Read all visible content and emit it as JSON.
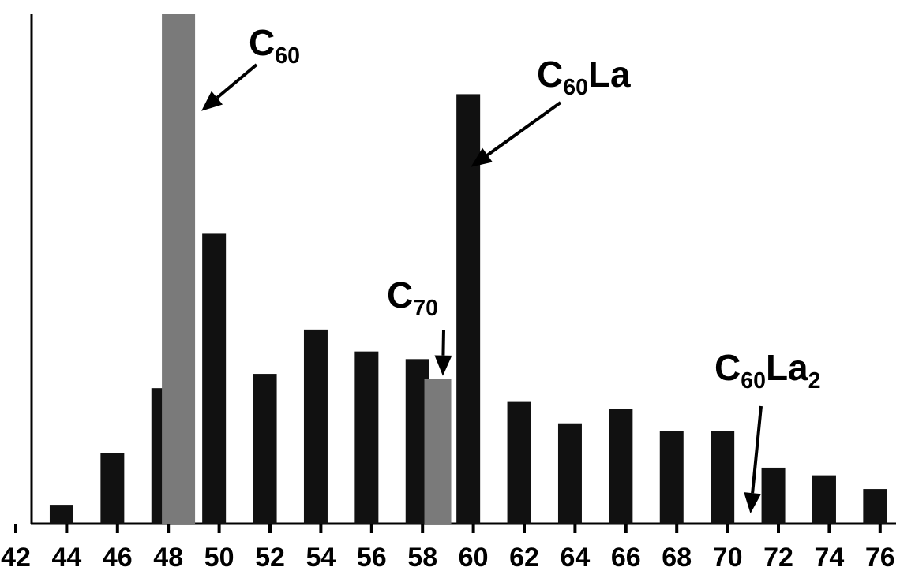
{
  "chart_data": {
    "type": "bar",
    "title": "",
    "xlabel": "",
    "ylabel": "",
    "x_ticks": [
      "42",
      "44",
      "46",
      "48",
      "50",
      "52",
      "54",
      "56",
      "58",
      "60",
      "62",
      "64",
      "66",
      "68",
      "70",
      "72",
      "74",
      "76"
    ],
    "ylim": [
      0,
      100
    ],
    "grid": false,
    "bars": [
      {
        "x": 43.8,
        "value": 3.7,
        "color": "#111111"
      },
      {
        "x": 45.8,
        "value": 13.8,
        "color": "#111111"
      },
      {
        "x": 47.8,
        "value": 26.6,
        "color": "#111111"
      },
      {
        "x": 48.4,
        "value": 100,
        "color": "#7a7a7a"
      },
      {
        "x": 49.8,
        "value": 56.9,
        "color": "#111111"
      },
      {
        "x": 51.8,
        "value": 29.4,
        "color": "#111111"
      },
      {
        "x": 53.8,
        "value": 38.1,
        "color": "#111111"
      },
      {
        "x": 55.8,
        "value": 33.8,
        "color": "#111111"
      },
      {
        "x": 57.8,
        "value": 32.3,
        "color": "#111111"
      },
      {
        "x": 58.6,
        "value": 28.4,
        "color": "#7a7a7a"
      },
      {
        "x": 59.8,
        "value": 84.3,
        "color": "#111111"
      },
      {
        "x": 61.8,
        "value": 23.9,
        "color": "#111111"
      },
      {
        "x": 63.8,
        "value": 19.7,
        "color": "#111111"
      },
      {
        "x": 65.8,
        "value": 22.5,
        "color": "#111111"
      },
      {
        "x": 67.8,
        "value": 18.2,
        "color": "#111111"
      },
      {
        "x": 69.8,
        "value": 18.2,
        "color": "#111111"
      },
      {
        "x": 71.8,
        "value": 11.0,
        "color": "#111111"
      },
      {
        "x": 73.8,
        "value": 9.5,
        "color": "#111111"
      },
      {
        "x": 75.8,
        "value": 6.8,
        "color": "#111111"
      }
    ],
    "annotations": [
      {
        "id": "c60",
        "base": "C",
        "sub1": "60",
        "mid": "",
        "sub2": "",
        "points_to": {
          "x": 49.3,
          "value": 81
        }
      },
      {
        "id": "c60la",
        "base": "C",
        "sub1": "60",
        "mid": "La",
        "sub2": "",
        "points_to": {
          "x": 59.9,
          "value": 70
        }
      },
      {
        "id": "c70",
        "base": "C",
        "sub1": "70",
        "mid": "",
        "sub2": "",
        "points_to": {
          "x": 58.8,
          "value": 29
        }
      },
      {
        "id": "c60la2",
        "base": "C",
        "sub1": "60",
        "mid": "La",
        "sub2": "2",
        "points_to": {
          "x": 70.9,
          "value": 2
        }
      }
    ]
  }
}
